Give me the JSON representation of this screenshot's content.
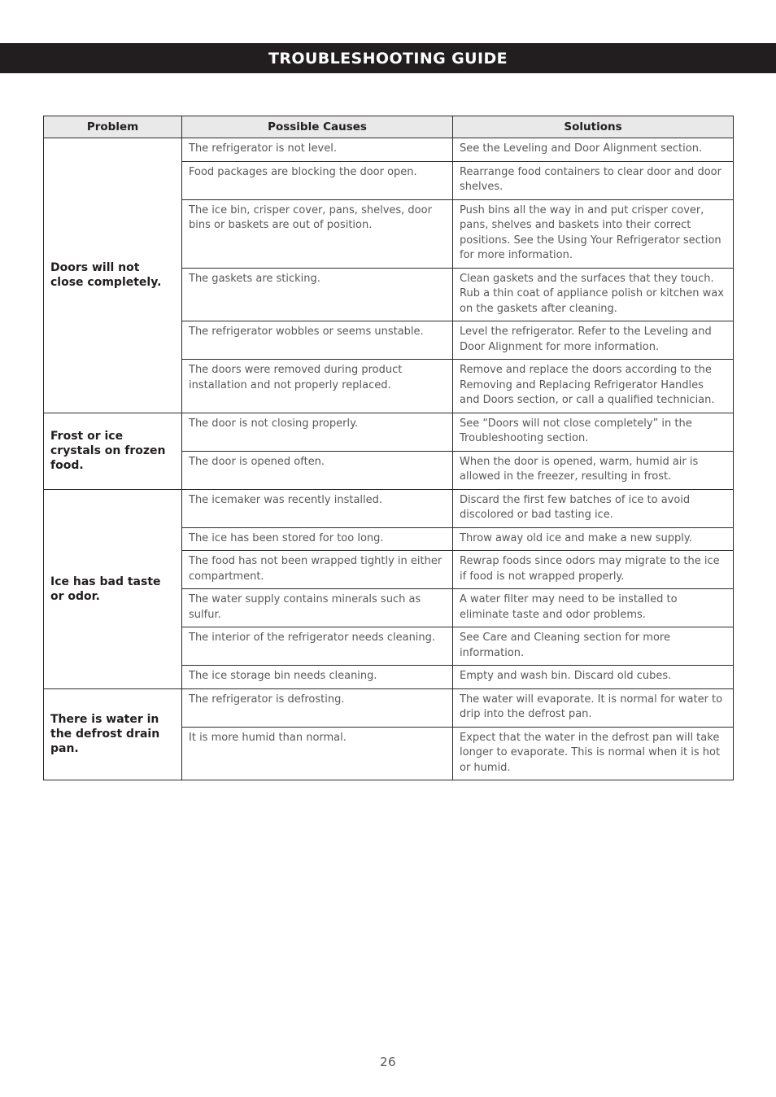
{
  "page": {
    "title": "TROUBLESHOOTING GUIDE",
    "page_number": "26"
  },
  "colors": {
    "header_bar_bg": "#221e1f",
    "header_bar_text": "#ffffff",
    "table_header_bg": "#e9e9e9",
    "table_border": "#2e2a2b",
    "body_text": "#57585a",
    "problem_text": "#221e1f"
  },
  "table": {
    "headers": [
      "Problem",
      "Possible Causes",
      "Solutions"
    ],
    "groups": [
      {
        "problem": "Doors will not close completely.",
        "rows": [
          {
            "cause": "The refrigerator is not level.",
            "solution": "See the Leveling and Door Alignment section."
          },
          {
            "cause": "Food packages are blocking the door open.",
            "solution": "Rearrange food containers to clear door and door shelves."
          },
          {
            "cause": "The ice bin, crisper cover, pans, shelves, door bins or baskets are out of position.",
            "solution": "Push bins all the way in and put crisper cover, pans, shelves and baskets into their correct positions. See the Using Your Refrigerator section for more information."
          },
          {
            "cause": "The gaskets are sticking.",
            "solution": "Clean gaskets and the surfaces that they touch. Rub a thin coat of appliance polish or kitchen wax on the gaskets after cleaning."
          },
          {
            "cause": "The refrigerator wobbles or seems unstable.",
            "solution": "Level the refrigerator. Refer to the Leveling and Door Alignment for more information."
          },
          {
            "cause": "The doors were removed during product installation and not properly replaced.",
            "solution": "Remove and replace the doors according to the Removing and Replacing Refrigerator Handles and Doors section, or call a qualified technician."
          }
        ]
      },
      {
        "problem": "Frost or ice crystals on frozen food.",
        "rows": [
          {
            "cause": "The door is not closing properly.",
            "solution": "See “Doors will not close completely” in the Troubleshooting section."
          },
          {
            "cause": "The door is opened often.",
            "solution": "When the door is opened, warm, humid air is allowed in the freezer, resulting in frost."
          }
        ]
      },
      {
        "problem": "Ice has bad taste or odor.",
        "rows": [
          {
            "cause": "The icemaker was recently installed.",
            "solution": "Discard the first few batches of ice to avoid discolored or bad tasting ice."
          },
          {
            "cause": "The ice has been stored for too long.",
            "solution": "Throw away old ice and make a new supply."
          },
          {
            "cause": "The food has not been wrapped tightly in either compartment.",
            "solution": "Rewrap foods since odors may migrate to the ice if food is not wrapped properly."
          },
          {
            "cause": "The water supply contains minerals such as sulfur.",
            "solution": "A water filter may need to be installed to eliminate taste and odor problems."
          },
          {
            "cause": "The interior of the refrigerator needs cleaning.",
            "solution": "See Care and Cleaning section for more information."
          },
          {
            "cause": "The ice storage bin needs cleaning.",
            "solution": "Empty and wash bin. Discard old cubes."
          }
        ]
      },
      {
        "problem": "There is water in the defrost drain pan.",
        "rows": [
          {
            "cause": "The refrigerator is defrosting.",
            "solution": "The water will evaporate. It is normal for water to drip into the defrost pan."
          },
          {
            "cause": "It is more humid than normal.",
            "solution": "Expect that the water in the defrost pan will take longer to evaporate. This is normal when it is hot or humid."
          }
        ]
      }
    ]
  }
}
